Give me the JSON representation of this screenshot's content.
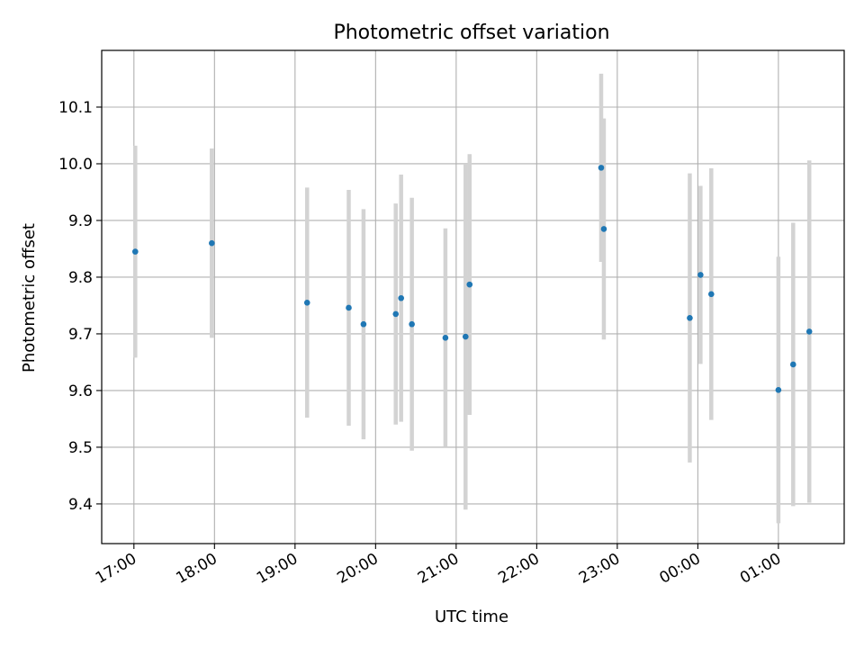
{
  "chart_data": {
    "type": "scatter",
    "title": "Photometric offset variation",
    "xlabel": "UTC time",
    "ylabel": "Photometric offset",
    "x_tick_labels": [
      "17:00",
      "18:00",
      "19:00",
      "20:00",
      "21:00",
      "22:00",
      "23:00",
      "00:00",
      "01:00"
    ],
    "y_tick_labels": [
      "9.4",
      "9.5",
      "9.6",
      "9.7",
      "9.8",
      "9.9",
      "10.0",
      "10.1"
    ],
    "y_ticks": [
      9.4,
      9.5,
      9.6,
      9.7,
      9.8,
      9.9,
      10.0,
      10.1
    ],
    "xlim": [
      "16:36",
      "01:49 (+1 day)"
    ],
    "ylim": [
      9.33,
      10.2
    ],
    "grid": true,
    "colors": {
      "points": "#1f77b4",
      "error_bars": "#d3d3d3",
      "grid": "#b0b0b0"
    },
    "points": [
      {
        "x": "17:01",
        "y": 9.845,
        "yerr": 0.187
      },
      {
        "x": "17:58",
        "y": 9.86,
        "yerr": 0.167
      },
      {
        "x": "19:09",
        "y": 9.755,
        "yerr": 0.203
      },
      {
        "x": "19:40",
        "y": 9.746,
        "yerr": 0.208
      },
      {
        "x": "19:51",
        "y": 9.717,
        "yerr": 0.203
      },
      {
        "x": "20:15",
        "y": 9.735,
        "yerr": 0.195
      },
      {
        "x": "20:19",
        "y": 9.763,
        "yerr": 0.218
      },
      {
        "x": "20:27",
        "y": 9.717,
        "yerr": 0.223
      },
      {
        "x": "20:52",
        "y": 9.693,
        "yerr": 0.193
      },
      {
        "x": "21:07",
        "y": 9.695,
        "yerr": 0.305
      },
      {
        "x": "21:10",
        "y": 9.787,
        "yerr": 0.23
      },
      {
        "x": "22:48",
        "y": 9.993,
        "yerr": 0.166
      },
      {
        "x": "22:50",
        "y": 9.885,
        "yerr": 0.195
      },
      {
        "x": "23:54",
        "y": 9.728,
        "yerr": 0.255
      },
      {
        "x": "00:02",
        "y": 9.804,
        "yerr": 0.157
      },
      {
        "x": "00:10",
        "y": 9.77,
        "yerr": 0.222
      },
      {
        "x": "01:00",
        "y": 9.601,
        "yerr": 0.235
      },
      {
        "x": "01:11",
        "y": 9.646,
        "yerr": 0.25
      },
      {
        "x": "01:23",
        "y": 9.704,
        "yerr": 0.302
      }
    ]
  }
}
